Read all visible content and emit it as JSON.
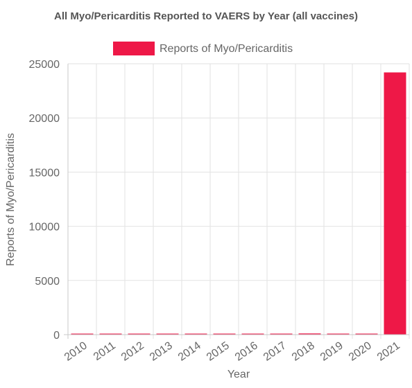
{
  "chart_data": {
    "type": "bar",
    "title": "All Myo/Pericarditis Reported to VAERS by Year (all vaccines)",
    "xlabel": "Year",
    "ylabel": "Reports of Myo/Pericarditis",
    "categories": [
      "2010",
      "2011",
      "2012",
      "2013",
      "2014",
      "2015",
      "2016",
      "2017",
      "2018",
      "2019",
      "2020",
      "2021"
    ],
    "series": [
      {
        "name": "Reports of Myo/Pericarditis",
        "color": "#ee1847",
        "values": [
          62,
          80,
          95,
          88,
          70,
          48,
          45,
          62,
          110,
          70,
          55,
          24200
        ]
      }
    ],
    "ylim": [
      0,
      25000
    ],
    "yticks": [
      "0",
      "5000",
      "10000",
      "15000",
      "20000",
      "25000"
    ],
    "ytick_values": [
      0,
      5000,
      10000,
      15000,
      20000,
      25000
    ],
    "grid": true,
    "legend": "top-center"
  }
}
